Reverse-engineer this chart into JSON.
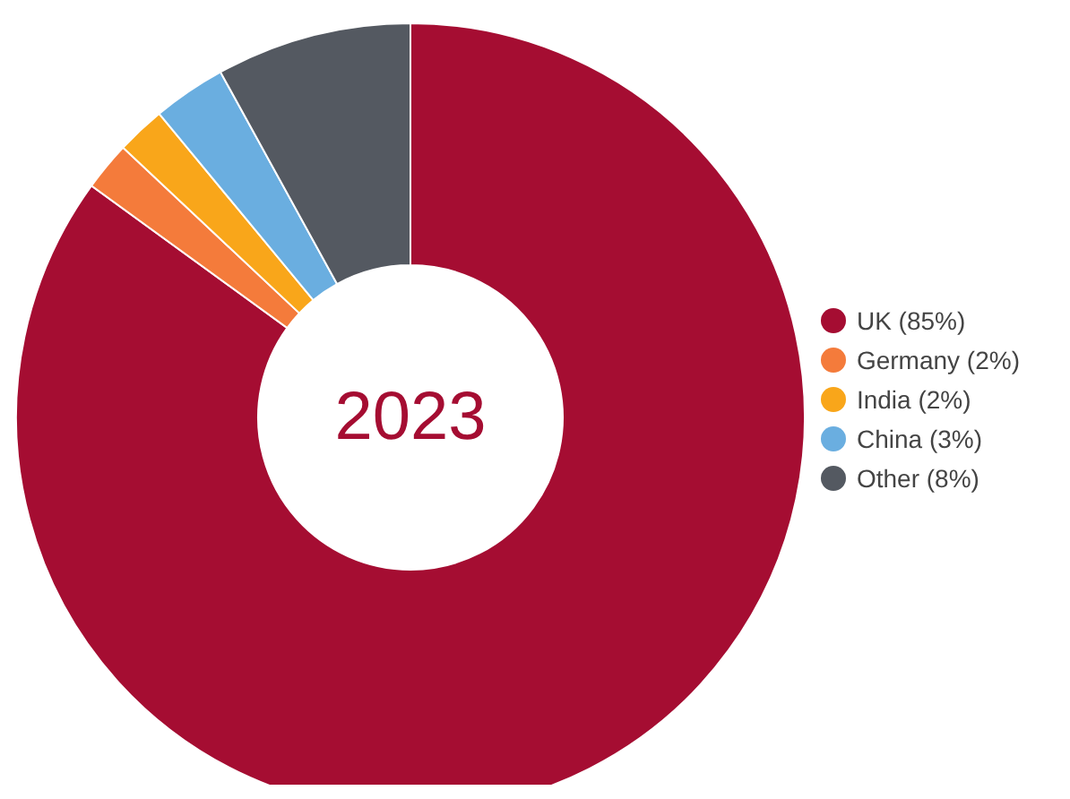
{
  "chart_data": {
    "type": "donut",
    "title": "2023",
    "categories": [
      "UK (85%)",
      "Germany (2%)",
      "India (2%)",
      "China (3%)",
      "Other (8%)"
    ],
    "values": [
      85,
      2,
      2,
      3,
      8
    ],
    "colors": [
      "#a50d32",
      "#f47b3b",
      "#f9a61a",
      "#6aaee0",
      "#545961"
    ],
    "legend": "right"
  }
}
